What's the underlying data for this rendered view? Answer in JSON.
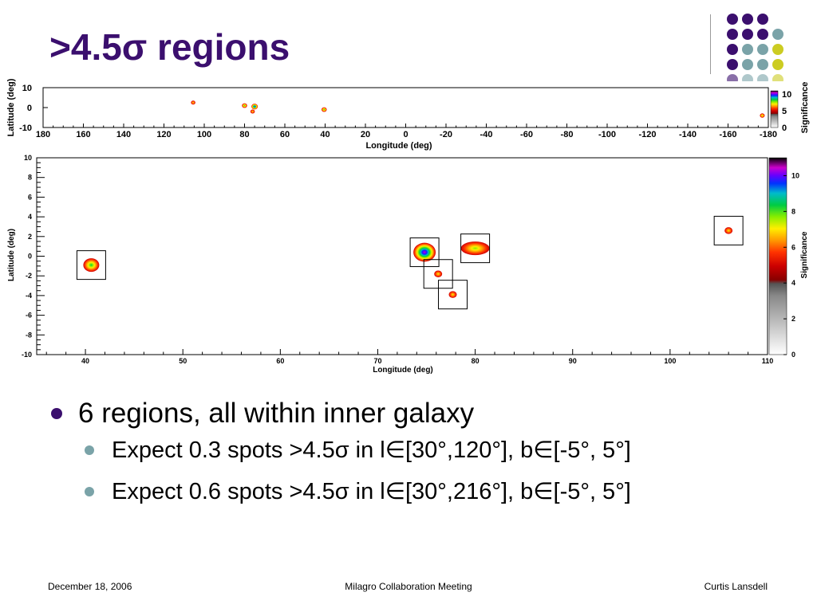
{
  "slide": {
    "title": ">4.5σ regions",
    "bullet_main": "6 regions, all within inner galaxy",
    "sub_bullets": [
      "Expect 0.3 spots >4.5σ in l∈[30°,120°], b∈[-5°, 5°]",
      "Expect 0.6 spots >4.5σ in l∈[30°,216°], b∈[-5°, 5°]"
    ]
  },
  "footer": {
    "date": "December 18, 2006",
    "center": "Milagro Collaboration Meeting",
    "author": "Curtis Lansdell"
  },
  "colors": {
    "title": "#3b0f6e",
    "dot_purple": "#3b0f6e",
    "dot_teal": "#7aa3a8",
    "dot_yellow": "#cccc22",
    "bullet_main_dot": "#3b0f6e",
    "bullet_sub_dot": "#7aa3a8"
  },
  "chart_data": [
    {
      "type": "heatmap",
      "xlabel": "Longitude (deg)",
      "ylabel": "Latitude (deg)",
      "colorbar_label": "Significance",
      "xlim": [
        180,
        -180
      ],
      "ylim": [
        -10,
        10
      ],
      "x_ticks": [
        180,
        160,
        140,
        120,
        100,
        80,
        60,
        40,
        20,
        0,
        -20,
        -40,
        -60,
        -80,
        -100,
        -120,
        -140,
        -160,
        -180
      ],
      "y_ticks": [
        10,
        0,
        -10
      ],
      "colorbar_ticks": [
        10,
        5,
        0
      ],
      "spots": [
        {
          "l": 105.5,
          "b": 2.5,
          "peak": 5
        },
        {
          "l": 80,
          "b": 1,
          "peak": 7
        },
        {
          "l": 75,
          "b": 0.5,
          "peak": 10
        },
        {
          "l": 76,
          "b": -2,
          "peak": 5
        },
        {
          "l": 40.5,
          "b": -1,
          "peak": 7
        },
        {
          "l": -177,
          "b": -4,
          "peak": 6
        }
      ]
    },
    {
      "type": "heatmap",
      "xlabel": "Longitude (deg)",
      "ylabel": "Latitude (deg)",
      "colorbar_label": "Significance",
      "xlim": [
        35,
        110
      ],
      "ylim": [
        -10,
        10
      ],
      "x_ticks": [
        40,
        50,
        60,
        70,
        80,
        90,
        100,
        110
      ],
      "y_ticks": [
        10,
        8,
        6,
        4,
        2,
        0,
        -2,
        -4,
        -6,
        -8,
        -10
      ],
      "colorbar_ticks": [
        10,
        8,
        6,
        4,
        2,
        0
      ],
      "colorbar_range": [
        0,
        11
      ],
      "regions": [
        {
          "l": 40.6,
          "b": -0.9,
          "peak": 7.5
        },
        {
          "l": 74.8,
          "b": 0.4,
          "peak": 11
        },
        {
          "l": 80,
          "b": 0.8,
          "peak": 6.5
        },
        {
          "l": 76.2,
          "b": -1.8,
          "peak": 4.8
        },
        {
          "l": 77.7,
          "b": -3.9,
          "peak": 4.8
        },
        {
          "l": 106,
          "b": 2.6,
          "peak": 4.8
        }
      ]
    }
  ]
}
